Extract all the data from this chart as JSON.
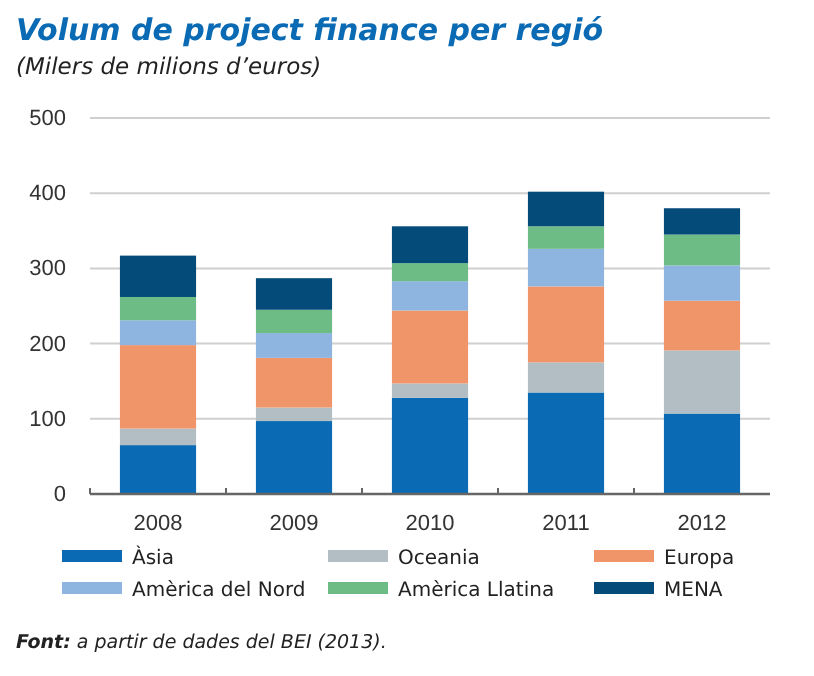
{
  "chart_data": {
    "type": "bar",
    "stacked": true,
    "title": "Volum de project finance per regió",
    "subtitle": "(Milers de milions d’euros)",
    "categories": [
      "2008",
      "2009",
      "2010",
      "2011",
      "2012"
    ],
    "series": [
      {
        "name": "Àsia",
        "color": "#0a6bb4",
        "values": [
          65,
          97,
          128,
          135,
          107
        ]
      },
      {
        "name": "Oceania",
        "color": "#b2bec3",
        "values": [
          22,
          18,
          19,
          40,
          84
        ]
      },
      {
        "name": "Europa",
        "color": "#f0956a",
        "values": [
          111,
          66,
          97,
          101,
          66
        ]
      },
      {
        "name": "Amèrica del Nord",
        "color": "#8eb4e0",
        "values": [
          33,
          33,
          39,
          50,
          47
        ]
      },
      {
        "name": "Amèrica Llatina",
        "color": "#6dbb85",
        "values": [
          31,
          31,
          24,
          30,
          41
        ]
      },
      {
        "name": "MENA",
        "color": "#044b7a",
        "values": [
          55,
          42,
          49,
          46,
          35
        ]
      }
    ],
    "ylim": [
      0,
      500
    ],
    "yticks": [
      0,
      100,
      200,
      300,
      400,
      500
    ],
    "grid": "y",
    "legend": "bottom",
    "annotations": [
      "Font: a partir de dades del BEI (2013)."
    ]
  }
}
